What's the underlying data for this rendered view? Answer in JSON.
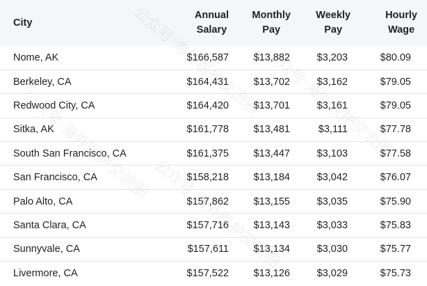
{
  "table": {
    "headers": {
      "city": "City",
      "annual_line1": "Annual",
      "annual_line2": "Salary",
      "monthly_line1": "Monthly",
      "monthly_line2": "Pay",
      "weekly_line1": "Weekly",
      "weekly_line2": "Pay",
      "hourly_line1": "Hourly",
      "hourly_line2": "Wage"
    },
    "rows": [
      {
        "city": "Nome, AK",
        "annual": "$166,587",
        "monthly": "$13,882",
        "weekly": "$3,203",
        "hourly": "$80.09"
      },
      {
        "city": "Berkeley, CA",
        "annual": "$164,431",
        "monthly": "$13,702",
        "weekly": "$3,162",
        "hourly": "$79.05"
      },
      {
        "city": "Redwood City, CA",
        "annual": "$164,420",
        "monthly": "$13,701",
        "weekly": "$3,161",
        "hourly": "$79.05"
      },
      {
        "city": "Sitka, AK",
        "annual": "$161,778",
        "monthly": "$13,481",
        "weekly": "$3,111",
        "hourly": "$77.78"
      },
      {
        "city": "South San Francisco, CA",
        "annual": "$161,375",
        "monthly": "$13,447",
        "weekly": "$3,103",
        "hourly": "$77.58"
      },
      {
        "city": "San Francisco, CA",
        "annual": "$158,218",
        "monthly": "$13,184",
        "weekly": "$3,042",
        "hourly": "$76.07"
      },
      {
        "city": "Palo Alto, CA",
        "annual": "$157,862",
        "monthly": "$13,155",
        "weekly": "$3,035",
        "hourly": "$75.90"
      },
      {
        "city": "Santa Clara, CA",
        "annual": "$157,716",
        "monthly": "$13,143",
        "weekly": "$3,033",
        "hourly": "$75.83"
      },
      {
        "city": "Sunnyvale, CA",
        "annual": "$157,611",
        "monthly": "$13,134",
        "weekly": "$3,030",
        "hourly": "$75.77"
      },
      {
        "city": "Livermore, CA",
        "annual": "$157,522",
        "monthly": "$13,126",
        "weekly": "$3,029",
        "hourly": "$75.73"
      }
    ]
  },
  "watermark": {
    "text": "公众号·海外医护交流圈"
  }
}
